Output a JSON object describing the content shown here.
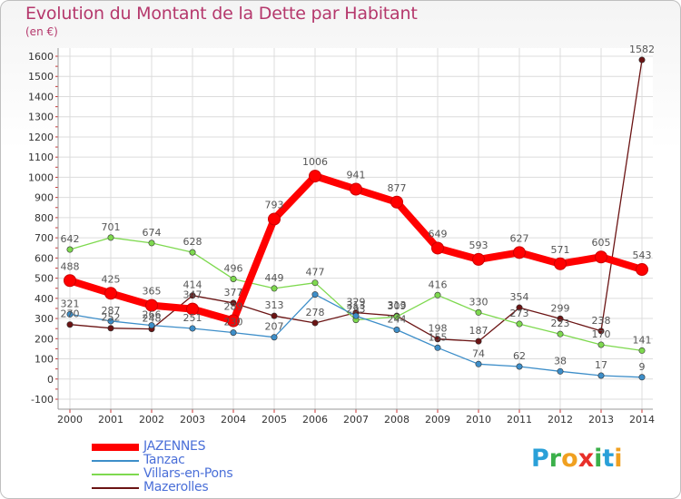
{
  "title": "Evolution du Montant de la Dette par Habitant",
  "subtitle": "(en €)",
  "logo": {
    "letters": [
      "P",
      "r",
      "o",
      "x",
      "i",
      "t",
      "i"
    ],
    "colors": [
      "#2aa0d8",
      "#3bb04a",
      "#f0a020",
      "#e8302a",
      "#3bb04a",
      "#2aa0d8",
      "#f0a020"
    ]
  },
  "chart_data": {
    "type": "line",
    "title": "Evolution du Montant de la Dette par Habitant",
    "ylabel": "(en €)",
    "xlabel": "",
    "x": [
      "2000",
      "2001",
      "2002",
      "2003",
      "2004",
      "2005",
      "2006",
      "2007",
      "2008",
      "2009",
      "2010",
      "2011",
      "2012",
      "2013",
      "2014"
    ],
    "ylim": [
      -100,
      1600
    ],
    "yticks": [
      -100,
      0,
      100,
      200,
      300,
      400,
      500,
      600,
      700,
      800,
      900,
      1000,
      1100,
      1200,
      1300,
      1400,
      1500,
      1600
    ],
    "grid": true,
    "legend_position": "bottom-left",
    "series": [
      {
        "name": "JAZENNES",
        "color": "#ff0000",
        "values": [
          488,
          425,
          365,
          347,
          289,
          793,
          1006,
          941,
          877,
          649,
          593,
          627,
          571,
          605,
          543
        ],
        "labels": [
          "488",
          "425",
          "365",
          "347",
          "289",
          "793",
          "1006",
          "941",
          "877",
          "649",
          "593",
          "627",
          "571",
          "605",
          "543"
        ]
      },
      {
        "name": "Tanzac",
        "color": "#3d8ec9",
        "values": [
          321,
          287,
          266,
          251,
          230,
          207,
          419,
          313,
          244,
          155,
          74,
          62,
          38,
          17,
          9
        ],
        "labels": [
          "321",
          "287",
          "266",
          "251",
          "230",
          "207",
          "",
          "313",
          "244",
          "155",
          "74",
          "62",
          "38",
          "17",
          "9"
        ]
      },
      {
        "name": "Villars-en-Pons",
        "color": "#7ed94f",
        "values": [
          642,
          701,
          674,
          628,
          496,
          449,
          477,
          293,
          309,
          416,
          330,
          273,
          223,
          170,
          141
        ],
        "labels": [
          "642",
          "701",
          "674",
          "628",
          "496",
          "449",
          "477",
          "293",
          "309",
          "416",
          "330",
          "273",
          "223",
          "170",
          "141"
        ]
      },
      {
        "name": "Mazerolles",
        "color": "#6b1414",
        "values": [
          270,
          252,
          248,
          414,
          377,
          313,
          278,
          329,
          313,
          198,
          187,
          354,
          299,
          238,
          1582
        ],
        "labels": [
          "270",
          "252",
          "248",
          "414",
          "377",
          "313",
          "278",
          "329",
          "313",
          "198",
          "187",
          "354",
          "299",
          "238",
          "1582"
        ]
      }
    ]
  }
}
